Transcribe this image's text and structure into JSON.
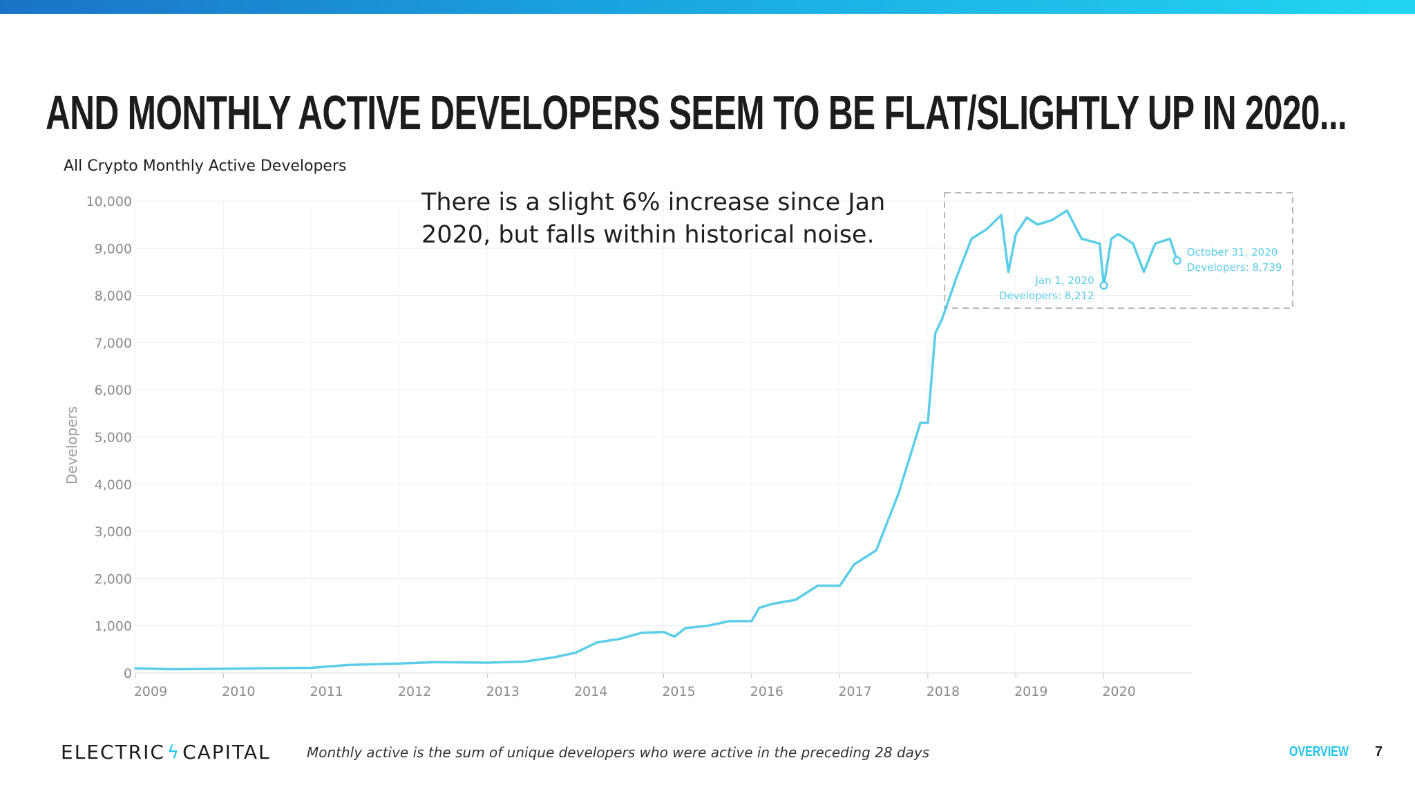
{
  "slide": {
    "title": "And monthly active developers seem to be flat/slightly up in 2020...",
    "annotation": "There is a slight 6% increase since Jan 2020, but falls within historical noise.",
    "footer_logo_left": "ELECTRIC",
    "footer_logo_right": "CAPITAL",
    "footer_note": "Monthly active is the sum of unique developers who were active in the preceding 28 days",
    "section_label": "OVERVIEW",
    "page_number": "7"
  },
  "colors": {
    "accent": "#5ccde8",
    "grid": "#ececec",
    "axis_text": "#8a8a8a",
    "highlight_box": "#b8b8b8"
  },
  "chart_data": {
    "type": "line",
    "title": "All Crypto Monthly Active Developers",
    "xlabel": "",
    "ylabel": "Developers",
    "ylim": [
      0,
      10000
    ],
    "xlim": [
      "2009-01-01",
      "2020-12-31"
    ],
    "yticks": [
      "0",
      "1,000",
      "2,000",
      "3,000",
      "4,000",
      "5,000",
      "6,000",
      "7,000",
      "8,000",
      "9,000",
      "10,000"
    ],
    "xticks": [
      "2009",
      "2010",
      "2011",
      "2012",
      "2013",
      "2014",
      "2015",
      "2016",
      "2017",
      "2018",
      "2019",
      "2020"
    ],
    "grid": true,
    "series": [
      {
        "x": [
          "2009-01-01",
          "2009-06-01",
          "2010-01-01",
          "2010-06-01",
          "2011-01-01",
          "2011-06-01",
          "2012-01-01",
          "2012-06-01",
          "2013-01-01",
          "2013-06-01",
          "2013-10-01",
          "2014-01-01",
          "2014-04-01",
          "2014-07-01",
          "2014-10-01",
          "2015-01-01",
          "2015-02-15",
          "2015-04-01",
          "2015-07-01",
          "2015-10-01",
          "2016-01-01",
          "2016-02-01",
          "2016-04-01",
          "2016-07-01",
          "2016-10-01",
          "2017-01-01",
          "2017-03-01",
          "2017-06-01",
          "2017-09-01",
          "2017-12-01",
          "2018-01-01",
          "2018-02-01",
          "2018-03-01",
          "2018-05-01",
          "2018-07-01",
          "2018-09-01",
          "2018-11-01",
          "2018-12-01",
          "2019-01-01",
          "2019-02-15",
          "2019-04-01",
          "2019-06-01",
          "2019-08-01",
          "2019-10-01",
          "2019-12-15",
          "2020-01-01",
          "2020-02-01",
          "2020-03-01",
          "2020-05-01",
          "2020-06-15",
          "2020-08-01",
          "2020-10-01",
          "2020-10-31"
        ],
        "values": [
          100,
          80,
          90,
          100,
          110,
          170,
          200,
          230,
          220,
          240,
          330,
          430,
          650,
          720,
          850,
          870,
          770,
          950,
          1000,
          1100,
          1100,
          1380,
          1470,
          1550,
          1850,
          1850,
          2300,
          2600,
          3800,
          5300,
          5300,
          7200,
          7500,
          8400,
          9200,
          9400,
          9700,
          8500,
          9300,
          9650,
          9500,
          9600,
          9800,
          9200,
          9100,
          8212,
          9200,
          9300,
          9100,
          8500,
          9100,
          9200,
          8739
        ]
      }
    ],
    "annotations": [
      {
        "x": "2020-01-01",
        "label_date": "Jan 1, 2020",
        "label_value": "Developers: 8,212"
      },
      {
        "x": "2020-10-31",
        "label_date": "October 31, 2020",
        "label_value": "Developers: 8,739"
      }
    ]
  }
}
